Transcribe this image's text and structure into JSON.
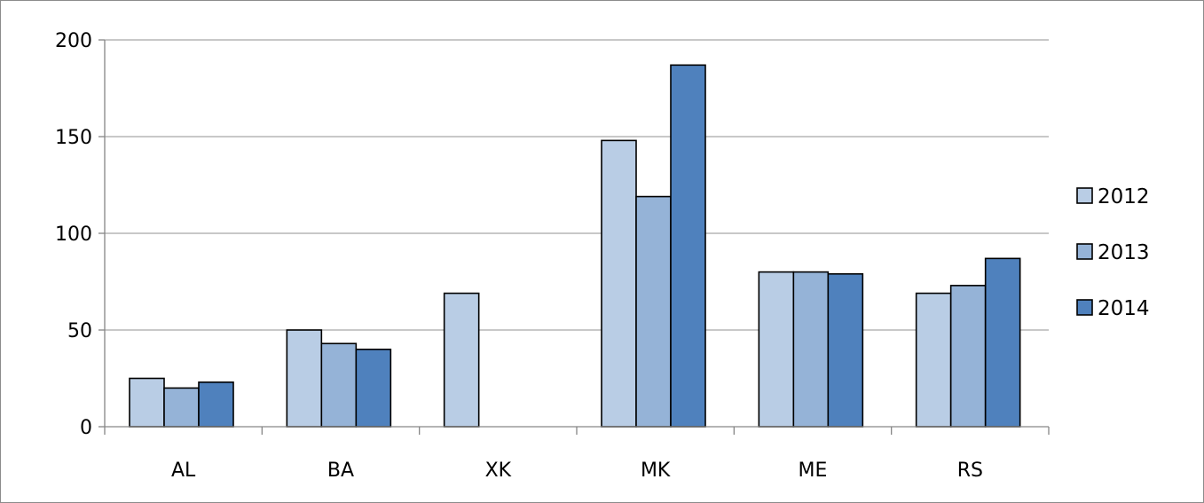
{
  "chart_data": {
    "type": "bar",
    "categories": [
      "AL",
      "BA",
      "XK",
      "MK",
      "ME",
      "RS"
    ],
    "series": [
      {
        "name": "2012",
        "values": [
          25,
          50,
          69,
          148,
          80,
          69
        ],
        "color": "#b9cde5"
      },
      {
        "name": "2013",
        "values": [
          20,
          43,
          null,
          119,
          80,
          73
        ],
        "color": "#95b3d7"
      },
      {
        "name": "2014",
        "values": [
          23,
          40,
          null,
          187,
          79,
          87
        ],
        "color": "#4f81bd"
      }
    ],
    "ylim": [
      0,
      200
    ],
    "yticks": [
      "0",
      "50",
      "100",
      "150",
      "200"
    ],
    "grid": true,
    "legend_position": "right",
    "bar_border_color": "#000000",
    "grid_color": "#a6a6a6"
  }
}
